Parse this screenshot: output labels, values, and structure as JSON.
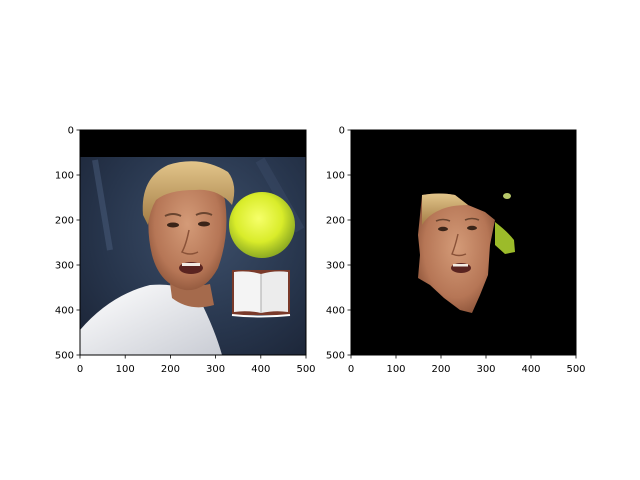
{
  "figure": {
    "background": "#ffffff"
  },
  "chart_data": [
    {
      "type": "image",
      "content": "photo: tennis player's face with a tennis ball in front, black band at top, small open-book graphic at lower right",
      "xlim": [
        0,
        500
      ],
      "ylim": [
        500,
        0
      ],
      "xticks": [
        0,
        100,
        200,
        300,
        400,
        500
      ],
      "yticks": [
        0,
        100,
        200,
        300,
        400,
        500
      ],
      "xlabel": "",
      "ylabel": "",
      "grid": false
    },
    {
      "type": "image",
      "content": "segmentation mask result: face region of the same photo isolated on black background, small green fragments of the ball at right",
      "xlim": [
        0,
        500
      ],
      "ylim": [
        500,
        0
      ],
      "xticks": [
        0,
        100,
        200,
        300,
        400,
        500
      ],
      "yticks": [
        0,
        100,
        200,
        300,
        400,
        500
      ],
      "xlabel": "",
      "ylabel": "",
      "grid": false
    }
  ]
}
